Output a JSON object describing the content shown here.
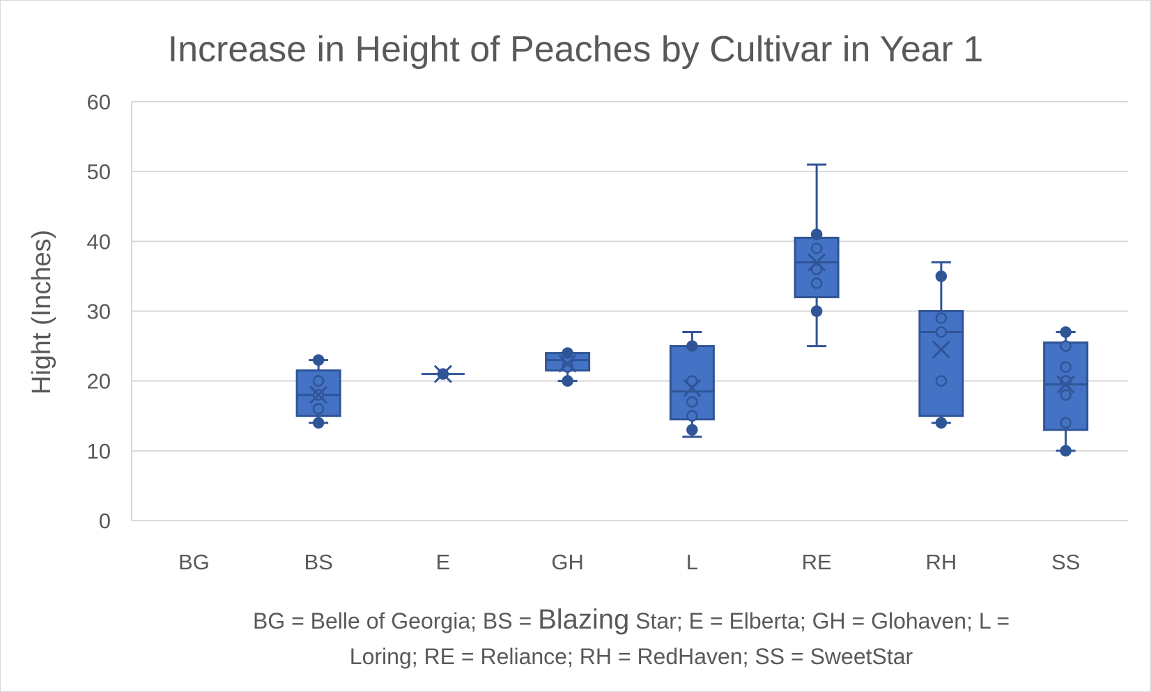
{
  "chart_data": {
    "type": "box",
    "title": "Increase in Height of Peaches by Cultivar in Year 1",
    "xlabel": "",
    "ylabel": "Hight (Inches)",
    "ylim": [
      0,
      60
    ],
    "yticks": [
      0,
      10,
      20,
      30,
      40,
      50,
      60
    ],
    "grid": true,
    "categories": [
      "BG",
      "BS",
      "E",
      "GH",
      "L",
      "RE",
      "RH",
      "SS"
    ],
    "series": [
      {
        "category": "BG",
        "empty": true
      },
      {
        "category": "BS",
        "whisker_low": 14,
        "q1": 15,
        "median": 18,
        "q3": 21.5,
        "whisker_high": 23,
        "mean": 18,
        "points": [
          16,
          18,
          20,
          23,
          14
        ]
      },
      {
        "category": "E",
        "whisker_low": 21,
        "q1": 21,
        "median": 21,
        "q3": 21,
        "whisker_high": 21,
        "mean": 21,
        "points": [
          21
        ]
      },
      {
        "category": "GH",
        "whisker_low": 20,
        "q1": 21.5,
        "median": 23,
        "q3": 24,
        "whisker_high": 24,
        "mean": 22.5,
        "points": [
          22,
          23,
          24,
          20
        ]
      },
      {
        "category": "L",
        "whisker_low": 12,
        "q1": 14.5,
        "median": 18.5,
        "q3": 25,
        "whisker_high": 27,
        "mean": 19,
        "points": [
          13,
          15,
          17,
          20,
          25
        ]
      },
      {
        "category": "RE",
        "whisker_low": 25,
        "q1": 32,
        "median": 37,
        "q3": 40.5,
        "whisker_high": 51,
        "mean": 37,
        "points": [
          30,
          34,
          36,
          39,
          41
        ]
      },
      {
        "category": "RH",
        "whisker_low": 14,
        "q1": 15,
        "median": 27,
        "q3": 30,
        "whisker_high": 37,
        "mean": 24.5,
        "points": [
          14,
          20,
          27,
          29,
          35
        ]
      },
      {
        "category": "SS",
        "whisker_low": 10,
        "q1": 13,
        "median": 19.5,
        "q3": 25.5,
        "whisker_high": 27,
        "mean": 19.5,
        "points": [
          10,
          14,
          18,
          20,
          22,
          25,
          27
        ]
      }
    ],
    "footnote": {
      "line1_before": "BG = Belle of Georgia; BS = ",
      "line1_big": "Blazing",
      "line1_after": " Star; E = Elberta; GH = Glohaven; L =",
      "line2": "Loring; RE = Reliance; RH = RedHaven; SS = SweetStar"
    },
    "colors": {
      "box_fill": "#4472c4",
      "box_stroke": "#2f5597",
      "grid": "#d9d9d9",
      "text": "#595959"
    }
  }
}
